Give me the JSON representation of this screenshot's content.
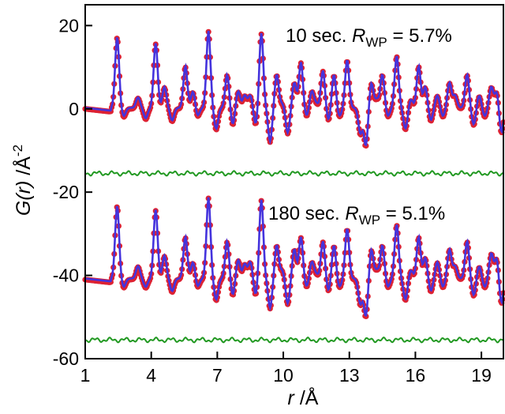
{
  "chart_data": {
    "type": "scatter",
    "xlabel": {
      "var": "r",
      "unit": " /Å"
    },
    "ylabel": {
      "var": "G(r)",
      "unit": " /Å",
      "exp": "-2"
    },
    "xlim": [
      1,
      20
    ],
    "ylim": [
      -60,
      25
    ],
    "xticks": [
      1,
      4,
      7,
      10,
      13,
      16,
      19
    ],
    "yticks": [
      20,
      0,
      -20,
      -40,
      -60
    ],
    "grid": false,
    "colors": {
      "observed": "#dd2233",
      "calculated": "#4433dd",
      "difference": "#229922"
    },
    "annotations": [
      {
        "prefix": "10 sec. ",
        "var": "R",
        "sub": "WP",
        "suffix": " = 5.7%"
      },
      {
        "prefix": "180 sec. ",
        "var": "R",
        "sub": "WP",
        "suffix": " = 5.1%"
      }
    ],
    "series": [
      {
        "offset": 0,
        "peaks": [
          [
            2.45,
            17
          ],
          [
            2.75,
            -2
          ],
          [
            3.4,
            2.5
          ],
          [
            3.75,
            -2.5
          ],
          [
            4.2,
            15.5
          ],
          [
            4.6,
            5
          ],
          [
            4.95,
            -3
          ],
          [
            5.55,
            10
          ],
          [
            5.9,
            4
          ],
          [
            6.1,
            -2
          ],
          [
            6.6,
            18.5
          ],
          [
            6.95,
            -5
          ],
          [
            7.45,
            8
          ],
          [
            7.7,
            -4
          ],
          [
            7.95,
            4
          ],
          [
            8.25,
            3
          ],
          [
            8.5,
            3
          ],
          [
            8.75,
            -4
          ],
          [
            9.0,
            18
          ],
          [
            9.2,
            0
          ],
          [
            9.4,
            -8
          ],
          [
            9.7,
            8
          ],
          [
            9.95,
            1
          ],
          [
            10.2,
            -6
          ],
          [
            10.5,
            6
          ],
          [
            10.8,
            11
          ],
          [
            11.05,
            -2
          ],
          [
            11.3,
            4
          ],
          [
            11.5,
            1
          ],
          [
            11.8,
            9
          ],
          [
            12.05,
            -3
          ],
          [
            12.3,
            8
          ],
          [
            12.55,
            -2
          ],
          [
            12.9,
            11.5
          ],
          [
            13.15,
            0
          ],
          [
            13.5,
            -6
          ],
          [
            13.75,
            -9
          ],
          [
            14.0,
            6
          ],
          [
            14.25,
            2
          ],
          [
            14.5,
            8
          ],
          [
            14.75,
            -2
          ],
          [
            15.15,
            12.5
          ],
          [
            15.35,
            0
          ],
          [
            15.55,
            -5
          ],
          [
            15.8,
            2
          ],
          [
            16.15,
            10
          ],
          [
            16.45,
            5
          ],
          [
            16.7,
            -3
          ],
          [
            17.0,
            3
          ],
          [
            17.25,
            -2
          ],
          [
            17.55,
            6
          ],
          [
            17.8,
            3
          ],
          [
            18.0,
            0
          ],
          [
            18.35,
            8
          ],
          [
            18.65,
            -4
          ],
          [
            18.9,
            3
          ],
          [
            19.15,
            -2
          ],
          [
            19.45,
            5
          ],
          [
            19.7,
            4
          ],
          [
            19.9,
            -6
          ]
        ],
        "difference_level": -15.5
      },
      {
        "offset": -41,
        "peaks": [
          [
            2.45,
            17.5
          ],
          [
            2.75,
            -2
          ],
          [
            3.4,
            3
          ],
          [
            3.75,
            -2
          ],
          [
            4.2,
            16.5
          ],
          [
            4.6,
            5.5
          ],
          [
            4.95,
            -3
          ],
          [
            5.55,
            10
          ],
          [
            5.9,
            4
          ],
          [
            6.1,
            -2
          ],
          [
            6.6,
            19.5
          ],
          [
            6.95,
            -5
          ],
          [
            7.45,
            9
          ],
          [
            7.7,
            -4
          ],
          [
            7.95,
            4.5
          ],
          [
            8.25,
            3.5
          ],
          [
            8.5,
            4
          ],
          [
            8.75,
            -4
          ],
          [
            9.0,
            19
          ],
          [
            9.2,
            0
          ],
          [
            9.4,
            -7
          ],
          [
            9.7,
            8
          ],
          [
            9.95,
            2
          ],
          [
            10.2,
            -6
          ],
          [
            10.5,
            7
          ],
          [
            10.8,
            10
          ],
          [
            11.05,
            -2
          ],
          [
            11.3,
            4
          ],
          [
            11.5,
            1
          ],
          [
            11.8,
            9
          ],
          [
            12.05,
            -3
          ],
          [
            12.3,
            8
          ],
          [
            12.55,
            -2
          ],
          [
            12.9,
            12
          ],
          [
            13.15,
            0
          ],
          [
            13.5,
            -6
          ],
          [
            13.75,
            -9
          ],
          [
            14.0,
            7
          ],
          [
            14.25,
            2
          ],
          [
            14.5,
            8
          ],
          [
            14.75,
            -2
          ],
          [
            15.15,
            13
          ],
          [
            15.35,
            0
          ],
          [
            15.55,
            -5
          ],
          [
            15.8,
            2
          ],
          [
            16.15,
            10
          ],
          [
            16.45,
            5
          ],
          [
            16.7,
            -3
          ],
          [
            17.0,
            4
          ],
          [
            17.25,
            -2
          ],
          [
            17.55,
            7
          ],
          [
            17.8,
            3
          ],
          [
            18.0,
            0
          ],
          [
            18.35,
            9
          ],
          [
            18.65,
            -4
          ],
          [
            18.9,
            3
          ],
          [
            19.15,
            -2
          ],
          [
            19.45,
            6
          ],
          [
            19.7,
            5
          ],
          [
            19.9,
            -6
          ]
        ],
        "difference_level": -55.5
      }
    ]
  }
}
